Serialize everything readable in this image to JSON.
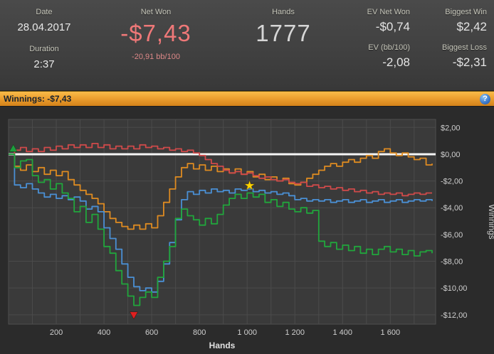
{
  "header": {
    "date": {
      "label": "Date",
      "value": "28.04.2017"
    },
    "duration": {
      "label": "Duration",
      "value": "2:37"
    },
    "net_won": {
      "label": "Net Won",
      "value": "-$7,43",
      "sub": "-20,91 bb/100"
    },
    "hands": {
      "label": "Hands",
      "value": "1777"
    },
    "ev_net_won": {
      "label": "EV Net Won",
      "value": "-$0,74"
    },
    "biggest_win": {
      "label": "Biggest Win",
      "value": "$2,42"
    },
    "ev_bb100": {
      "label": "EV (bb/100)",
      "value": "-2,08"
    },
    "biggest_loss": {
      "label": "Biggest Loss",
      "value": "-$2,31"
    }
  },
  "titlebar": {
    "text": "Winnings: -$7,43",
    "help": "?"
  },
  "colors": {
    "header_bg": "#414141",
    "net_won_red": "#ef7878",
    "titlebar_orange": "#eda030",
    "plot_bg": "#3a3a3a",
    "grid": "#4b4b4b",
    "zero_line": "#f5f5f5",
    "series_green": "#21a63c",
    "series_blue": "#4a8fd4",
    "series_orange": "#de8b21",
    "series_red": "#cf4a4a"
  },
  "chart_data": {
    "type": "line",
    "title": "Winnings: -$7,43",
    "xlabel": "Hands",
    "ylabel": "Winnings",
    "x_range": [
      0,
      1790
    ],
    "y_view": [
      2.6,
      -12.7
    ],
    "x_gridline_step": 100,
    "y_ticks": [
      {
        "v": 2,
        "label": "$2,00"
      },
      {
        "v": 0,
        "label": "$0,00"
      },
      {
        "v": -2,
        "label": "-$2,00"
      },
      {
        "v": -4,
        "label": "-$4,00"
      },
      {
        "v": -6,
        "label": "-$6,00"
      },
      {
        "v": -8,
        "label": "-$8,00"
      },
      {
        "v": -10,
        "label": "-$10,00"
      },
      {
        "v": -12,
        "label": "-$12,00"
      }
    ],
    "x_ticks": [
      {
        "v": 200,
        "label": "200"
      },
      {
        "v": 400,
        "label": "400"
      },
      {
        "v": 600,
        "label": "600"
      },
      {
        "v": 800,
        "label": "800"
      },
      {
        "v": 1000,
        "label": "1 000"
      },
      {
        "v": 1200,
        "label": "1 200"
      },
      {
        "v": 1400,
        "label": "1 400"
      },
      {
        "v": 1600,
        "label": "1 600"
      }
    ],
    "zero_line": {
      "v": 0,
      "color": "#f5f5f5"
    },
    "x": [
      0,
      25,
      50,
      75,
      100,
      125,
      150,
      175,
      200,
      225,
      250,
      275,
      300,
      325,
      350,
      375,
      400,
      425,
      450,
      475,
      500,
      525,
      550,
      575,
      600,
      625,
      650,
      675,
      700,
      725,
      750,
      775,
      800,
      825,
      850,
      875,
      900,
      925,
      950,
      975,
      1000,
      1025,
      1050,
      1075,
      1100,
      1125,
      1150,
      1175,
      1200,
      1225,
      1250,
      1275,
      1300,
      1325,
      1350,
      1375,
      1400,
      1425,
      1450,
      1475,
      1500,
      1525,
      1550,
      1575,
      1600,
      1625,
      1650,
      1675,
      1700,
      1725,
      1750,
      1775
    ],
    "series": [
      {
        "name": "orange-line",
        "color": "#de8b21",
        "values": [
          0,
          -0.9,
          -1.2,
          -0.8,
          -1.3,
          -1.0,
          -1.5,
          -1.2,
          -1.6,
          -1.3,
          -1.9,
          -2.3,
          -2.7,
          -3.0,
          -3.3,
          -3.7,
          -4.3,
          -4.8,
          -5.1,
          -5.4,
          -5.6,
          -5.3,
          -5.6,
          -5.2,
          -5.5,
          -4.6,
          -3.6,
          -2.6,
          -1.7,
          -1.0,
          -0.7,
          -1.1,
          -0.8,
          -1.2,
          -0.9,
          -1.3,
          -1.1,
          -1.4,
          -1.1,
          -1.5,
          -1.3,
          -1.7,
          -1.5,
          -1.9,
          -1.7,
          -2.0,
          -1.8,
          -2.2,
          -2.3,
          -2.1,
          -1.8,
          -1.5,
          -1.2,
          -0.9,
          -0.7,
          -0.9,
          -0.6,
          -0.4,
          -0.6,
          -0.3,
          -0.1,
          -0.3,
          0.2,
          0.4,
          0.1,
          -0.1,
          0.1,
          -0.2,
          -0.4,
          -0.3,
          -0.8,
          -0.7
        ]
      },
      {
        "name": "red-line",
        "color": "#cf4a4a",
        "values": [
          0,
          0.3,
          0.5,
          0.2,
          0.4,
          0.2,
          0.5,
          0.3,
          0.6,
          0.4,
          0.7,
          0.5,
          0.7,
          0.5,
          0.8,
          0.5,
          0.7,
          0.4,
          0.6,
          0.4,
          0.6,
          0.4,
          0.7,
          0.5,
          0.6,
          0.4,
          0.5,
          0.3,
          0.4,
          0.2,
          0.3,
          0.1,
          -0.1,
          -0.4,
          -0.7,
          -0.9,
          -1.2,
          -1.4,
          -1.3,
          -1.5,
          -1.4,
          -1.6,
          -1.8,
          -1.7,
          -1.9,
          -2.0,
          -1.9,
          -2.1,
          -2.2,
          -2.1,
          -2.4,
          -2.3,
          -2.5,
          -2.4,
          -2.6,
          -2.5,
          -2.7,
          -2.6,
          -2.8,
          -2.7,
          -2.9,
          -2.8,
          -3.0,
          -2.9,
          -3.0,
          -2.9,
          -3.1,
          -3.0,
          -2.9,
          -3.0,
          -2.9,
          -2.9
        ]
      },
      {
        "name": "blue-line",
        "color": "#4a8fd4",
        "values": [
          0,
          -2.3,
          -2.5,
          -2.2,
          -2.6,
          -2.9,
          -3.2,
          -3.0,
          -3.3,
          -3.1,
          -3.4,
          -3.2,
          -3.5,
          -4.1,
          -3.9,
          -4.3,
          -5.5,
          -6.3,
          -7.1,
          -8.2,
          -9.2,
          -9.9,
          -10.2,
          -10.0,
          -10.3,
          -9.5,
          -8.2,
          -6.6,
          -4.9,
          -3.4,
          -2.8,
          -3.0,
          -2.7,
          -2.9,
          -2.6,
          -2.8,
          -2.7,
          -2.9,
          -2.6,
          -2.7,
          -2.6,
          -2.8,
          -2.7,
          -2.9,
          -2.8,
          -3.0,
          -2.9,
          -3.1,
          -3.4,
          -3.3,
          -3.5,
          -3.4,
          -3.5,
          -3.4,
          -3.6,
          -3.5,
          -3.4,
          -3.6,
          -3.5,
          -3.4,
          -3.6,
          -3.5,
          -3.4,
          -3.6,
          -3.5,
          -3.4,
          -3.6,
          -3.5,
          -3.4,
          -3.5,
          -3.4,
          -3.5
        ]
      },
      {
        "name": "green-line",
        "color": "#21a63c",
        "values": [
          0,
          -1.0,
          -0.5,
          -0.4,
          -1.6,
          -2.1,
          -1.9,
          -2.6,
          -2.2,
          -2.9,
          -3.3,
          -4.3,
          -3.9,
          -5.1,
          -4.5,
          -5.6,
          -6.9,
          -7.4,
          -8.7,
          -9.7,
          -10.6,
          -11.3,
          -10.7,
          -10.3,
          -10.7,
          -9.2,
          -8.0,
          -6.9,
          -4.8,
          -4.1,
          -4.6,
          -4.9,
          -5.3,
          -4.8,
          -5.2,
          -4.5,
          -3.8,
          -3.3,
          -3.0,
          -3.3,
          -2.9,
          -3.2,
          -3.0,
          -3.6,
          -3.4,
          -3.9,
          -3.6,
          -4.1,
          -4.3,
          -4.0,
          -4.4,
          -4.2,
          -6.5,
          -6.9,
          -6.6,
          -7.1,
          -6.8,
          -7.2,
          -6.9,
          -7.4,
          -7.1,
          -7.5,
          -7.1,
          -6.9,
          -7.3,
          -7.1,
          -7.5,
          -7.2,
          -7.6,
          -7.3,
          -7.2,
          -7.4
        ]
      }
    ],
    "markers": [
      {
        "shape": "triangle-up",
        "color": "#1e9e3e",
        "x": 20,
        "y": 0.4
      },
      {
        "shape": "triangle-down",
        "color": "#e02020",
        "x": 525,
        "y": -12.0
      },
      {
        "shape": "star",
        "color": "#ffd400",
        "x": 1010,
        "y": -2.35
      }
    ]
  }
}
